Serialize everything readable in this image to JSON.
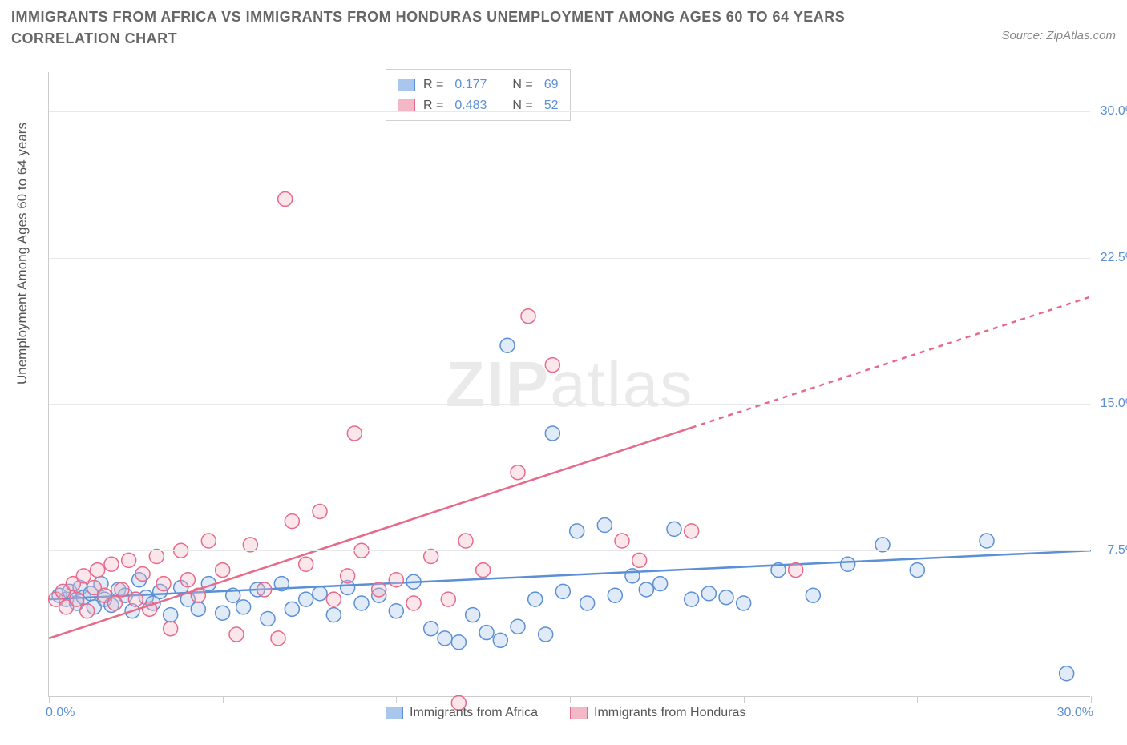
{
  "title": "IMMIGRANTS FROM AFRICA VS IMMIGRANTS FROM HONDURAS UNEMPLOYMENT AMONG AGES 60 TO 64 YEARS CORRELATION CHART",
  "source": "Source: ZipAtlas.com",
  "ylabel": "Unemployment Among Ages 60 to 64 years",
  "watermark_a": "ZIP",
  "watermark_b": "atlas",
  "chart": {
    "type": "scatter",
    "x_range": [
      0,
      30
    ],
    "y_range": [
      0,
      32
    ],
    "x_ticks_bottom": [
      0,
      5,
      10,
      15,
      20,
      25,
      30
    ],
    "x_tick_labels": {
      "left": "0.0%",
      "right": "30.0%"
    },
    "y_gridlines": [
      7.5,
      15.0,
      22.5,
      30.0
    ],
    "y_tick_labels": [
      "7.5%",
      "15.0%",
      "22.5%",
      "30.0%"
    ],
    "background_color": "#ffffff",
    "grid_color": "#e8e8e8",
    "axis_color": "#cccccc",
    "marker_radius": 9,
    "series": [
      {
        "name": "Immigrants from Africa",
        "color_fill": "#a9c7ec",
        "color_stroke": "#5b8fd6",
        "R": "0.177",
        "N": "69",
        "trend": {
          "x1": 0,
          "y1": 5.0,
          "x2": 30,
          "y2": 7.5,
          "dash_from_x": null
        },
        "points": [
          [
            0.3,
            5.2
          ],
          [
            0.5,
            5.0
          ],
          [
            0.6,
            5.4
          ],
          [
            0.8,
            4.8
          ],
          [
            0.9,
            5.6
          ],
          [
            1.0,
            5.1
          ],
          [
            1.2,
            5.3
          ],
          [
            1.3,
            4.6
          ],
          [
            1.5,
            5.8
          ],
          [
            1.6,
            5.0
          ],
          [
            1.8,
            4.7
          ],
          [
            2.0,
            5.5
          ],
          [
            2.2,
            5.2
          ],
          [
            2.4,
            4.4
          ],
          [
            2.6,
            6.0
          ],
          [
            2.8,
            5.1
          ],
          [
            3.0,
            4.8
          ],
          [
            3.2,
            5.4
          ],
          [
            3.5,
            4.2
          ],
          [
            3.8,
            5.6
          ],
          [
            4.0,
            5.0
          ],
          [
            4.3,
            4.5
          ],
          [
            4.6,
            5.8
          ],
          [
            5.0,
            4.3
          ],
          [
            5.3,
            5.2
          ],
          [
            5.6,
            4.6
          ],
          [
            6.0,
            5.5
          ],
          [
            6.3,
            4.0
          ],
          [
            6.7,
            5.8
          ],
          [
            7.0,
            4.5
          ],
          [
            7.4,
            5.0
          ],
          [
            7.8,
            5.3
          ],
          [
            8.2,
            4.2
          ],
          [
            8.6,
            5.6
          ],
          [
            9.0,
            4.8
          ],
          [
            9.5,
            5.2
          ],
          [
            10.0,
            4.4
          ],
          [
            10.5,
            5.9
          ],
          [
            11.0,
            3.5
          ],
          [
            11.4,
            3.0
          ],
          [
            11.8,
            2.8
          ],
          [
            12.2,
            4.2
          ],
          [
            12.6,
            3.3
          ],
          [
            13.0,
            2.9
          ],
          [
            13.5,
            3.6
          ],
          [
            14.0,
            5.0
          ],
          [
            14.3,
            3.2
          ],
          [
            14.8,
            5.4
          ],
          [
            15.2,
            8.5
          ],
          [
            15.5,
            4.8
          ],
          [
            16.0,
            8.8
          ],
          [
            16.3,
            5.2
          ],
          [
            16.8,
            6.2
          ],
          [
            17.2,
            5.5
          ],
          [
            17.6,
            5.8
          ],
          [
            18.0,
            8.6
          ],
          [
            18.5,
            5.0
          ],
          [
            19.0,
            5.3
          ],
          [
            19.5,
            5.1
          ],
          [
            20.0,
            4.8
          ],
          [
            21.0,
            6.5
          ],
          [
            22.0,
            5.2
          ],
          [
            23.0,
            6.8
          ],
          [
            24.0,
            7.8
          ],
          [
            25.0,
            6.5
          ],
          [
            27.0,
            8.0
          ],
          [
            29.3,
            1.2
          ],
          [
            14.5,
            13.5
          ],
          [
            13.2,
            18.0
          ]
        ]
      },
      {
        "name": "Immigrants from Honduras",
        "color_fill": "#f2b8c6",
        "color_stroke": "#e66a8a",
        "R": "0.483",
        "N": "52",
        "trend": {
          "x1": 0,
          "y1": 3.0,
          "x2": 30,
          "y2": 20.5,
          "dash_from_x": 18.5
        },
        "points": [
          [
            0.2,
            5.0
          ],
          [
            0.4,
            5.4
          ],
          [
            0.5,
            4.6
          ],
          [
            0.7,
            5.8
          ],
          [
            0.8,
            5.0
          ],
          [
            1.0,
            6.2
          ],
          [
            1.1,
            4.4
          ],
          [
            1.3,
            5.6
          ],
          [
            1.4,
            6.5
          ],
          [
            1.6,
            5.2
          ],
          [
            1.8,
            6.8
          ],
          [
            1.9,
            4.8
          ],
          [
            2.1,
            5.5
          ],
          [
            2.3,
            7.0
          ],
          [
            2.5,
            5.0
          ],
          [
            2.7,
            6.3
          ],
          [
            2.9,
            4.5
          ],
          [
            3.1,
            7.2
          ],
          [
            3.3,
            5.8
          ],
          [
            3.5,
            3.5
          ],
          [
            3.8,
            7.5
          ],
          [
            4.0,
            6.0
          ],
          [
            4.3,
            5.2
          ],
          [
            4.6,
            8.0
          ],
          [
            5.0,
            6.5
          ],
          [
            5.4,
            3.2
          ],
          [
            5.8,
            7.8
          ],
          [
            6.2,
            5.5
          ],
          [
            6.6,
            3.0
          ],
          [
            7.0,
            9.0
          ],
          [
            7.4,
            6.8
          ],
          [
            7.8,
            9.5
          ],
          [
            8.2,
            5.0
          ],
          [
            8.6,
            6.2
          ],
          [
            9.0,
            7.5
          ],
          [
            9.5,
            5.5
          ],
          [
            10.0,
            6.0
          ],
          [
            10.5,
            4.8
          ],
          [
            11.0,
            7.2
          ],
          [
            11.5,
            5.0
          ],
          [
            12.0,
            8.0
          ],
          [
            12.5,
            6.5
          ],
          [
            11.8,
            -0.3
          ],
          [
            8.8,
            13.5
          ],
          [
            13.8,
            19.5
          ],
          [
            14.5,
            17.0
          ],
          [
            6.8,
            25.5
          ],
          [
            13.5,
            11.5
          ],
          [
            16.5,
            8.0
          ],
          [
            17.0,
            7.0
          ],
          [
            18.5,
            8.5
          ],
          [
            21.5,
            6.5
          ]
        ]
      }
    ]
  },
  "legend_top_labels": {
    "R": "R =",
    "N": "N ="
  },
  "colors": {
    "tick_text": "#5b8fd6",
    "title_text": "#666666",
    "label_text": "#555555"
  }
}
